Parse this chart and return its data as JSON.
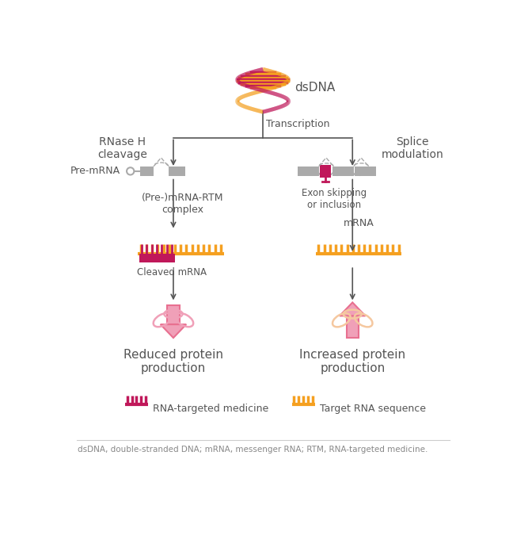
{
  "background_color": "#ffffff",
  "orange": "#F5A020",
  "magenta": "#C0185A",
  "pink_light": "#F0A0B8",
  "pink_arrow": "#E87090",
  "peach": "#F5C8A0",
  "gray": "#AAAAAA",
  "text_color": "#555555",
  "arrow_col": "#555555",
  "footnote": "dsDNA, double-stranded DNA; mRNA, messenger RNA; RTM, RNA-targeted medicine.",
  "dsdna_label": "dsDNA",
  "transcription_label": "Transcription",
  "rnase_label": "RNase H\ncleavage",
  "splice_label": "Splice\nmodulation",
  "premrna_label": "Pre-mRNA",
  "complex_label": "(Pre-)mRNA-RTM\ncomplex",
  "mrna_label": "mRNA",
  "cleaved_label": "Cleaved mRNA",
  "exon_label": "Exon skipping\nor inclusion",
  "reduced_label": "Reduced protein\nproduction",
  "increased_label": "Increased protein\nproduction",
  "legend1_label": "RNA-targeted medicine",
  "legend2_label": "Target RNA sequence"
}
